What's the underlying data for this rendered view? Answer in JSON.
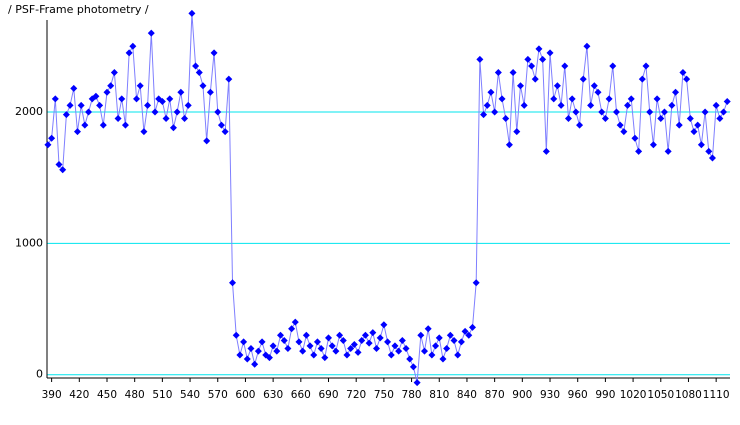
{
  "chart_data": {
    "type": "line",
    "title": "/ PSF-Frame photometry /",
    "x": [
      386,
      390,
      394,
      398,
      402,
      406,
      410,
      414,
      418,
      422,
      426,
      430,
      434,
      438,
      442,
      446,
      450,
      454,
      458,
      462,
      466,
      470,
      474,
      478,
      482,
      486,
      490,
      494,
      498,
      502,
      506,
      510,
      514,
      518,
      522,
      526,
      530,
      534,
      538,
      542,
      546,
      550,
      554,
      558,
      562,
      566,
      570,
      574,
      578,
      582,
      586,
      590,
      594,
      598,
      602,
      606,
      610,
      614,
      618,
      622,
      626,
      630,
      634,
      638,
      642,
      646,
      650,
      654,
      658,
      662,
      666,
      670,
      674,
      678,
      682,
      686,
      690,
      694,
      698,
      702,
      706,
      710,
      714,
      718,
      722,
      726,
      730,
      734,
      738,
      742,
      746,
      750,
      754,
      758,
      762,
      766,
      770,
      774,
      778,
      782,
      786,
      790,
      794,
      798,
      802,
      806,
      810,
      814,
      818,
      822,
      826,
      830,
      834,
      838,
      842,
      846,
      850,
      854,
      858,
      862,
      866,
      870,
      874,
      878,
      882,
      886,
      890,
      894,
      898,
      902,
      906,
      910,
      914,
      918,
      922,
      926,
      930,
      934,
      938,
      942,
      946,
      950,
      954,
      958,
      962,
      966,
      970,
      974,
      978,
      982,
      986,
      990,
      994,
      998,
      1002,
      1006,
      1010,
      1014,
      1018,
      1022,
      1026,
      1030,
      1034,
      1038,
      1042,
      1046,
      1050,
      1054,
      1058,
      1062,
      1066,
      1070,
      1074,
      1078,
      1082,
      1086,
      1090,
      1094,
      1098,
      1102,
      1106,
      1110,
      1114,
      1118,
      1122
    ],
    "series": [
      {
        "color": "#0000ff",
        "line_color": "#7f7fff",
        "values": [
          1750,
          1800,
          2100,
          1600,
          1560,
          1980,
          2050,
          2180,
          1850,
          2050,
          1900,
          2000,
          2100,
          2120,
          2050,
          1900,
          2150,
          2200,
          2300,
          1950,
          2100,
          1900,
          2450,
          2500,
          2100,
          2200,
          1850,
          2050,
          2600,
          2000,
          2100,
          2080,
          1950,
          2100,
          1880,
          2000,
          2150,
          1950,
          2050,
          2750,
          2350,
          2300,
          2200,
          1780,
          2150,
          2450,
          2000,
          1900,
          1850,
          2250,
          700,
          300,
          150,
          250,
          120,
          200,
          80,
          180,
          250,
          150,
          130,
          220,
          180,
          300,
          260,
          200,
          350,
          400,
          250,
          180,
          300,
          220,
          150,
          250,
          200,
          130,
          280,
          220,
          180,
          300,
          260,
          150,
          200,
          230,
          170,
          260,
          300,
          240,
          320,
          200,
          280,
          380,
          250,
          150,
          220,
          180,
          260,
          200,
          120,
          60,
          -60,
          300,
          180,
          350,
          150,
          220,
          280,
          120,
          200,
          300,
          260,
          150,
          250,
          330,
          300,
          360,
          700,
          2400,
          1980,
          2050,
          2150,
          2000,
          2300,
          2100,
          1950,
          1750,
          2300,
          1850,
          2200,
          2050,
          2400,
          2350,
          2250,
          2480,
          2400,
          1700,
          2450,
          2100,
          2200,
          2050,
          2350,
          1950,
          2100,
          2000,
          1900,
          2250,
          2500,
          2050,
          2200,
          2150,
          2000,
          1950,
          2100,
          2350,
          2000,
          1900,
          1850,
          2050,
          2100,
          1800,
          1700,
          2250,
          2350,
          2000,
          1750,
          2100,
          1950,
          2000,
          1700,
          2050,
          2150,
          1900,
          2300,
          2250,
          1950,
          1850,
          1900,
          1750,
          2000,
          1700,
          1650,
          2050,
          1950,
          2000,
          2080
        ]
      }
    ],
    "xlim": [
      385,
      1125
    ],
    "ylim": [
      -25,
      2700
    ],
    "xticks": [
      390,
      420,
      450,
      480,
      510,
      540,
      570,
      600,
      630,
      660,
      690,
      720,
      750,
      780,
      810,
      840,
      870,
      900,
      930,
      960,
      990,
      1020,
      1050,
      1080,
      1110
    ],
    "yticks": [
      0,
      1000,
      2000
    ],
    "grid": true,
    "grid_color": "#00e5ee"
  }
}
